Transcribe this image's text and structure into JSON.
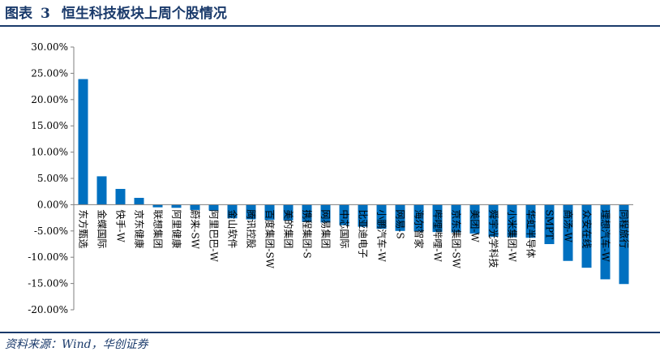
{
  "figure": {
    "title_prefix": "图表",
    "title_number": "3",
    "title_text": "恒生科技板块上周个股情况",
    "source": "资料来源：Wind，华创证券"
  },
  "chart_data": {
    "type": "bar",
    "title": "",
    "xlabel": "",
    "ylabel": "",
    "ylim": [
      -0.2,
      0.3
    ],
    "yticks": [
      "30.00%",
      "25.00%",
      "20.00%",
      "15.00%",
      "10.00%",
      "5.00%",
      "0.00%",
      "-5.00%",
      "-10.00%",
      "-15.00%",
      "-20.00%"
    ],
    "grid": false,
    "bar_color": "#0070c0",
    "categories": [
      "东方甄选",
      "金蝶国际",
      "快手-W",
      "京东健康",
      "联想集团",
      "阿里健康",
      "蔚来-SW",
      "阿里巴巴-W",
      "金山软件",
      "腾讯控股",
      "百度集团-SW",
      "美的集团",
      "携程集团-S",
      "网易集团",
      "中芯国际",
      "比亚迪电子",
      "小鹏汽车-W",
      "网易-S",
      "海尔智家",
      "哔哩哔哩-W",
      "京东集团-SW",
      "美团-W",
      "舜宇光学科技",
      "小米集团-W",
      "华虹半导体",
      "SMPT",
      "商汤-W",
      "众安在线",
      "理想汽车-W",
      "同程旅行"
    ],
    "values": [
      0.239,
      0.054,
      0.03,
      0.013,
      -0.005,
      -0.006,
      -0.01,
      -0.011,
      -0.026,
      -0.028,
      -0.029,
      -0.03,
      -0.033,
      -0.034,
      -0.039,
      -0.042,
      -0.046,
      -0.05,
      -0.051,
      -0.052,
      -0.053,
      -0.055,
      -0.061,
      -0.062,
      -0.063,
      -0.075,
      -0.107,
      -0.12,
      -0.142,
      -0.151
    ]
  }
}
